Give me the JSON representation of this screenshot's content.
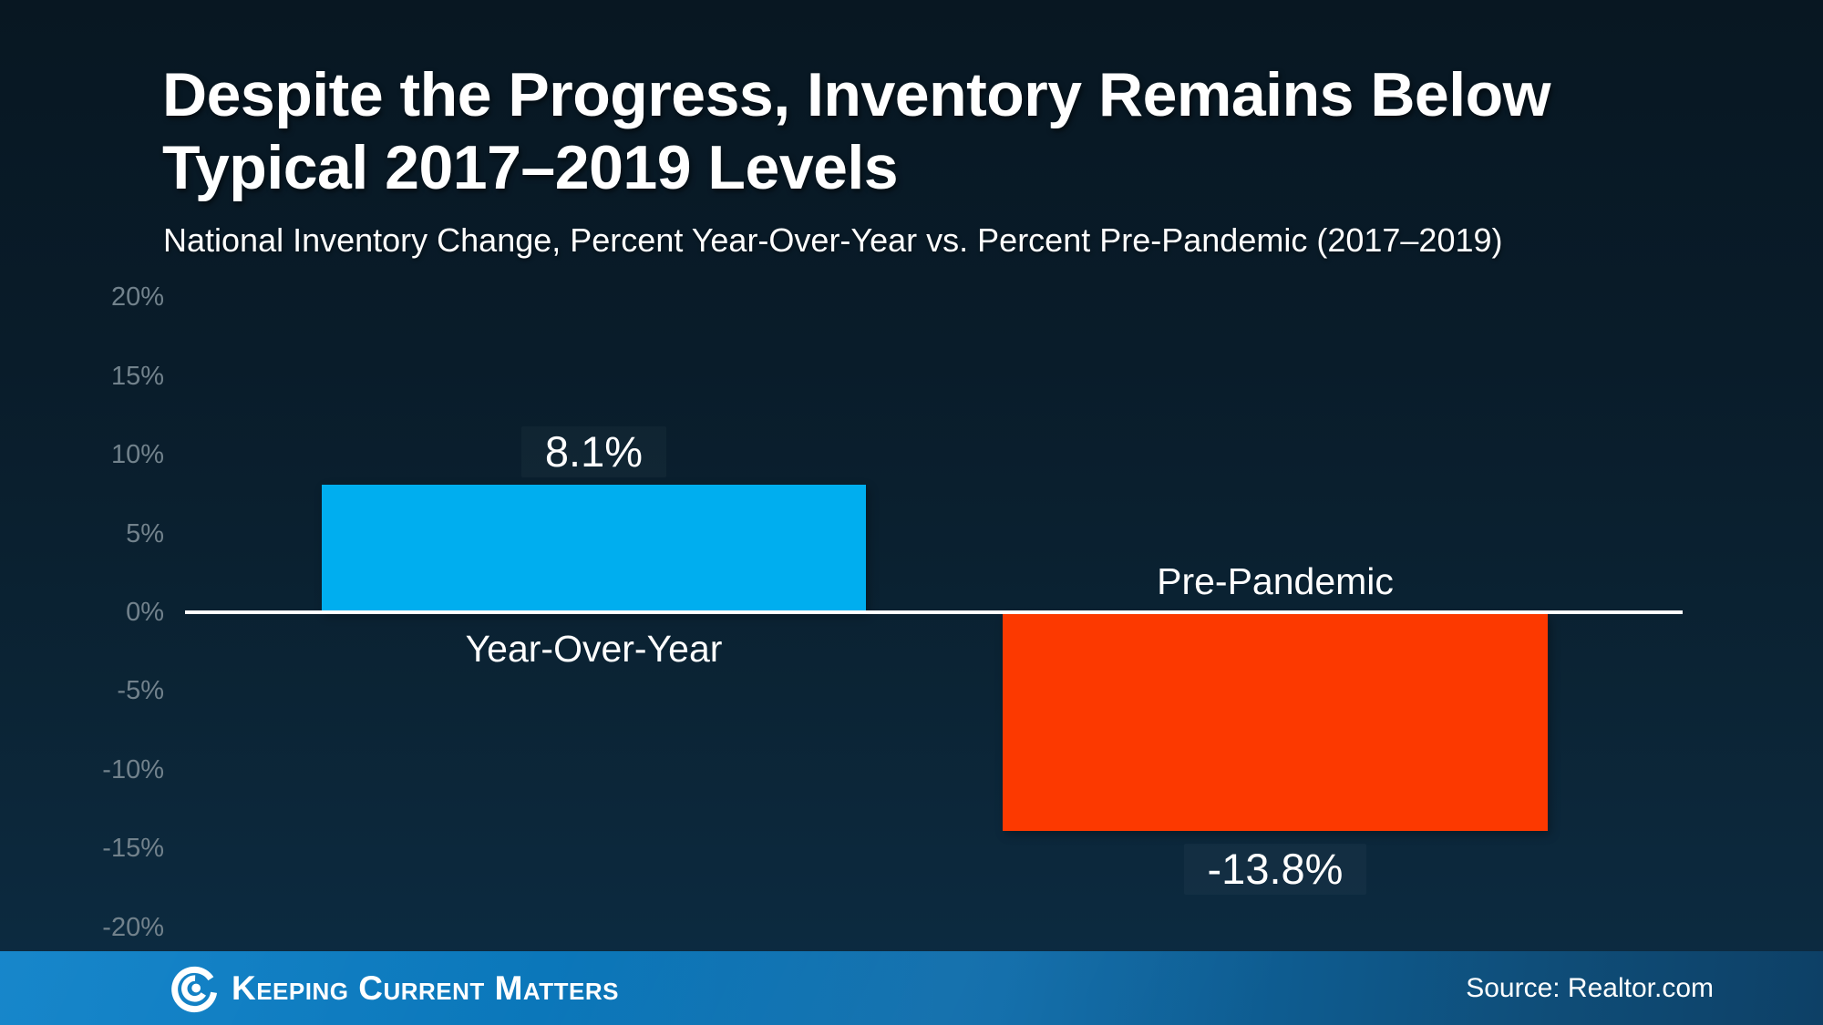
{
  "title": {
    "line1": "Despite the Progress, Inventory Remains Below",
    "line2": "Typical 2017–2019 Levels"
  },
  "subtitle": "National Inventory Change, Percent Year-Over-Year vs. Percent Pre-Pandemic (2017–2019)",
  "footer": {
    "brand": "Keeping Current Matters",
    "logo_icon": "kcm-swirl-icon",
    "source": "Source: Realtor.com"
  },
  "colors": {
    "background_top": "#081722",
    "background_bottom": "#0D2C43",
    "axis_line": "#FFFFFF",
    "tick_label": "#72828C",
    "bar_positive": "#00AEEF",
    "bar_negative": "#FC3900",
    "footer_left": "#0B80C8",
    "footer_right": "#0D4066",
    "text": "#FFFFFF"
  },
  "chart_data": {
    "type": "bar",
    "title": "Despite the Progress, Inventory Remains Below Typical 2017–2019 Levels",
    "subtitle": "National Inventory Change, Percent Year-Over-Year vs. Percent Pre-Pandemic (2017–2019)",
    "categories": [
      "Year-Over-Year",
      "Pre-Pandemic"
    ],
    "values": [
      8.1,
      -13.8
    ],
    "bars": [
      {
        "category": "Year-Over-Year",
        "value": 8.1,
        "value_label": "8.1%",
        "color": "#00AEEF"
      },
      {
        "category": "Pre-Pandemic",
        "value": -13.8,
        "value_label": "-13.8%",
        "color": "#FC3900"
      }
    ],
    "yticks": [
      {
        "label": "20%",
        "value": 20
      },
      {
        "label": "15%",
        "value": 15
      },
      {
        "label": "10%",
        "value": 10
      },
      {
        "label": "5%",
        "value": 5
      },
      {
        "label": "0%",
        "value": 0
      },
      {
        "label": "-5%",
        "value": -5
      },
      {
        "label": "-10%",
        "value": -10
      },
      {
        "label": "-15%",
        "value": -15
      },
      {
        "label": "-20%",
        "value": -20
      }
    ],
    "ylim": [
      -20,
      20
    ],
    "grid": false,
    "legend": null,
    "xlabel": "",
    "ylabel": ""
  }
}
